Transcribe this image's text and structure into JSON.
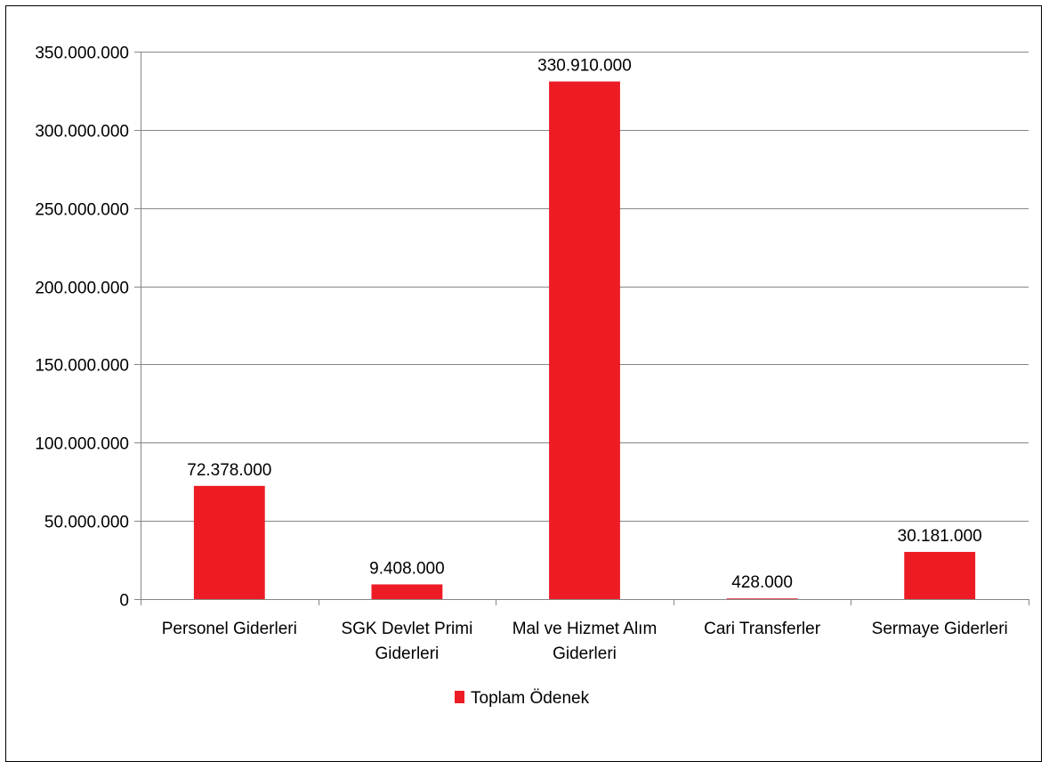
{
  "chart_data": {
    "type": "bar",
    "categories": [
      [
        "Personel Giderleri"
      ],
      [
        "SGK Devlet Primi",
        "Giderleri"
      ],
      [
        "Mal ve Hizmet Alım",
        "Giderleri"
      ],
      [
        "Cari Transferler"
      ],
      [
        "Sermaye Giderleri"
      ]
    ],
    "series": [
      {
        "name": "Toplam Ödenek",
        "values": [
          72378000,
          9408000,
          330910000,
          428000,
          30181000
        ],
        "labels": [
          "72.378.000",
          "9.408.000",
          "330.910.000",
          "428.000",
          "30.181.000"
        ]
      }
    ],
    "ylim": [
      0,
      350000000
    ],
    "yticks": [
      0,
      50000000,
      100000000,
      150000000,
      200000000,
      250000000,
      300000000,
      350000000
    ],
    "ytick_labels": [
      "0",
      "50.000.000",
      "100.000.000",
      "150.000.000",
      "200.000.000",
      "250.000.000",
      "300.000.000",
      "350.000.000"
    ],
    "grid": true,
    "legend": "bottom",
    "colors": {
      "bar": "#ED1C24",
      "grid": "#868686",
      "axis": "#868686"
    }
  }
}
